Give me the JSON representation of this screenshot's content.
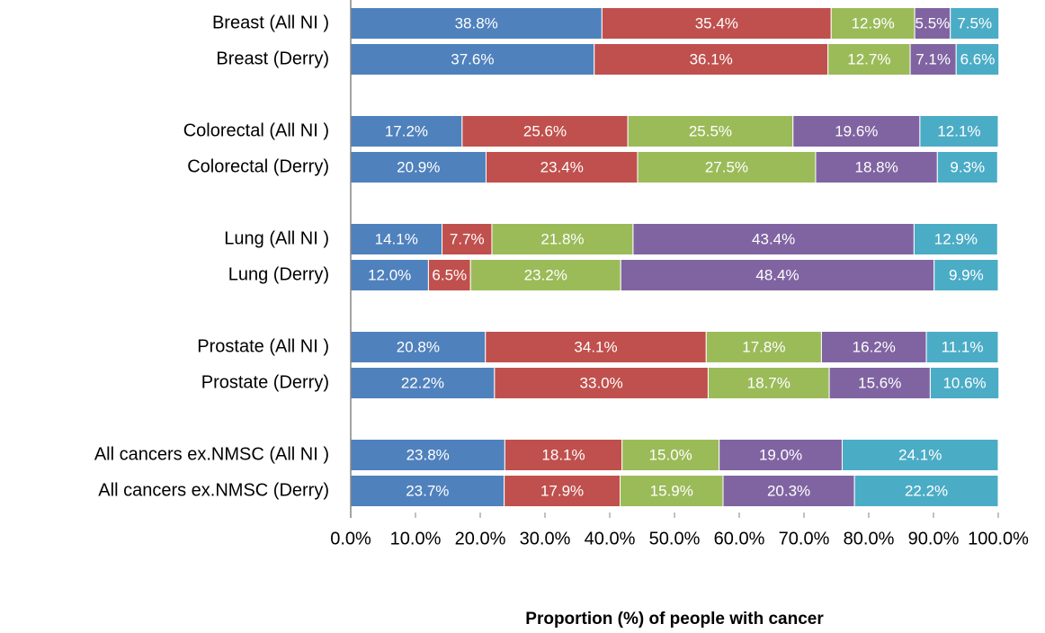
{
  "chart_data": {
    "type": "stacked_barh",
    "xlabel": "Proportion (%) of people with cancer",
    "categories": [
      "Breast (All NI )",
      "Breast (Derry)",
      null,
      "Colorectal (All NI )",
      "Colorectal (Derry)",
      null,
      "Lung (All NI )",
      "Lung (Derry)",
      null,
      "Prostate  (All NI )",
      "Prostate (Derry)",
      null,
      "All cancers ex.NMSC  (All NI )",
      "All cancers ex.NMSC (Derry)"
    ],
    "series": [
      {
        "color": "#4f81bd",
        "values": [
          38.8,
          37.6,
          null,
          17.2,
          20.9,
          null,
          14.1,
          12.0,
          null,
          20.8,
          22.2,
          null,
          23.8,
          23.7
        ],
        "value_labels": [
          "38.8%",
          "37.6%",
          null,
          "17.2%",
          "20.9%",
          null,
          "14.1%",
          "12.0%",
          null,
          "20.8%",
          "22.2%",
          null,
          "23.8%",
          "23.7%"
        ]
      },
      {
        "color": "#c0504d",
        "values": [
          35.4,
          36.1,
          null,
          25.6,
          23.4,
          null,
          7.7,
          6.5,
          null,
          34.1,
          33.0,
          null,
          18.1,
          17.9
        ],
        "value_labels": [
          "35.4%",
          "36.1%",
          null,
          "25.6%",
          "23.4%",
          null,
          "7.7%",
          "6.5%",
          null,
          "34.1%",
          "33.0%",
          null,
          "18.1%",
          "17.9%"
        ]
      },
      {
        "color": "#9bbb59",
        "values": [
          12.9,
          12.7,
          null,
          25.5,
          27.5,
          null,
          21.8,
          23.2,
          null,
          17.8,
          18.7,
          null,
          15.0,
          15.9
        ],
        "value_labels": [
          "12.9%",
          "12.7%",
          null,
          "25.5%",
          "27.5%",
          null,
          "21.8%",
          "23.2%",
          null,
          "17.8%",
          "18.7%",
          null,
          "15.0%",
          "15.9%"
        ]
      },
      {
        "color": "#8064a2",
        "values": [
          5.5,
          7.1,
          null,
          19.6,
          18.8,
          null,
          43.4,
          48.4,
          null,
          16.2,
          15.6,
          null,
          19.0,
          20.3
        ],
        "value_labels": [
          "5.5%",
          "7.1%",
          null,
          "19.6%",
          "18.8%",
          null,
          "43.4%",
          "48.4%",
          null,
          "16.2%",
          "15.6%",
          null,
          "19.0%",
          "20.3%"
        ]
      },
      {
        "color": "#4bacc6",
        "values": [
          7.5,
          6.6,
          null,
          12.1,
          9.3,
          null,
          12.9,
          9.9,
          null,
          11.1,
          10.6,
          null,
          24.1,
          22.2
        ],
        "value_labels": [
          "7.5%",
          "6.6%",
          null,
          "12.1%",
          "9.3%",
          null,
          "12.9%",
          "9.9%",
          null,
          "11.1%",
          "10.6%",
          null,
          "24.1%",
          "22.2%"
        ]
      }
    ],
    "xlim": [
      0,
      100
    ],
    "xticks": [
      {
        "value": 0,
        "label": "0.0%"
      },
      {
        "value": 10,
        "label": "10.0%"
      },
      {
        "value": 20,
        "label": "20.0%"
      },
      {
        "value": 30,
        "label": "30.0%"
      },
      {
        "value": 40,
        "label": "40.0%"
      },
      {
        "value": 50,
        "label": "50.0%"
      },
      {
        "value": 60,
        "label": "60.0%"
      },
      {
        "value": 70,
        "label": "70.0%"
      },
      {
        "value": 80,
        "label": "80.0%"
      },
      {
        "value": 90,
        "label": "90.0%"
      },
      {
        "value": 100,
        "label": "100.0%"
      }
    ]
  }
}
